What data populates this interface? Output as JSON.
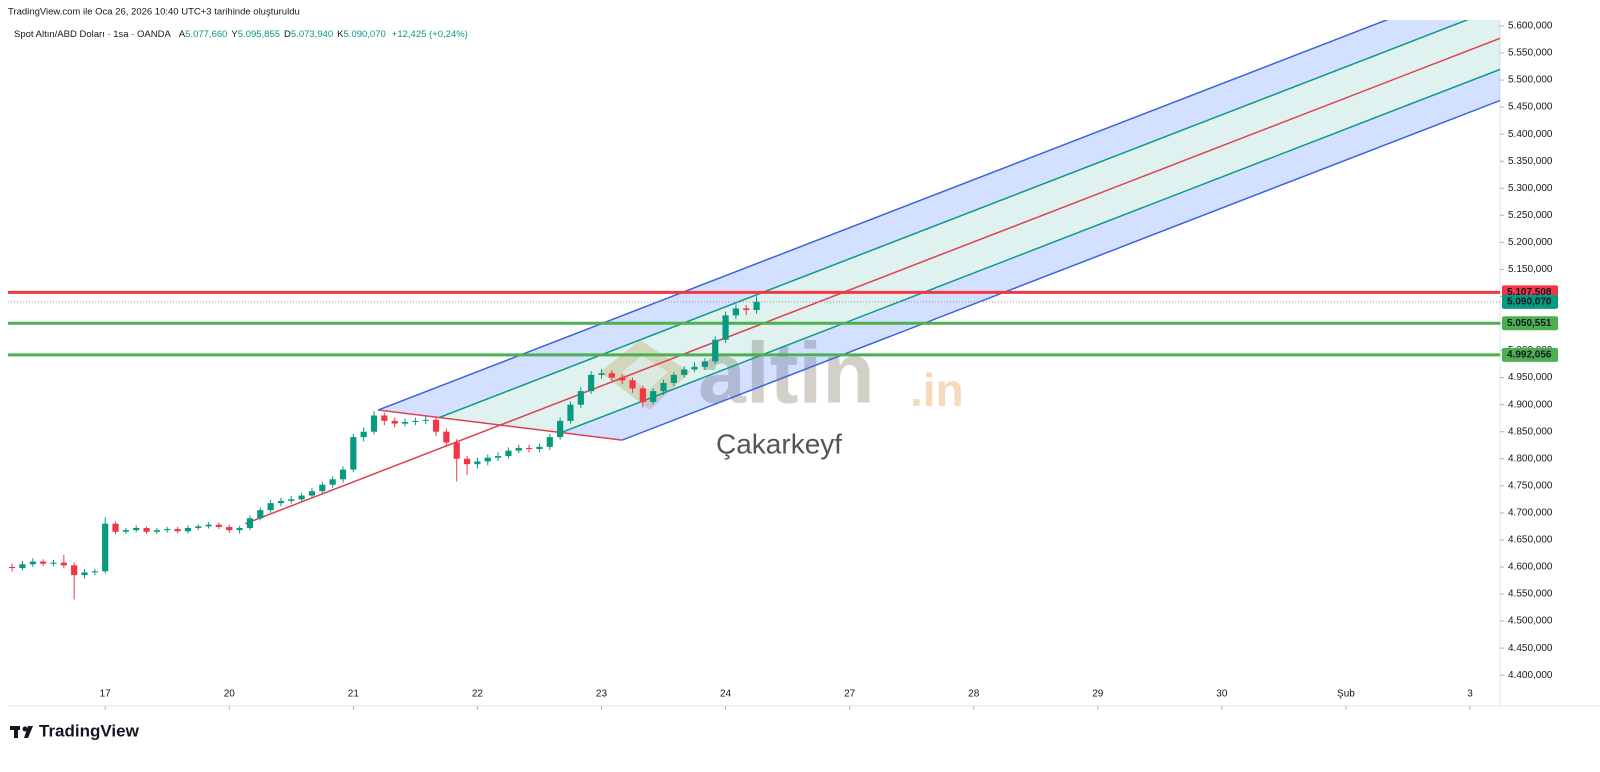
{
  "header": {
    "title": "TradingView.com ile Oca 26, 2026 10:40 UTC+3 tarihinde oluşturuldu"
  },
  "chart_data": {
    "type": "candlestick",
    "legend": {
      "symbol": "Spot Altın/ABD Doları · 1sa · OANDA",
      "fields": [
        {
          "key": "A",
          "value": "5.077,660"
        },
        {
          "key": "Y",
          "value": "5.095,855"
        },
        {
          "key": "D",
          "value": "5.073,940"
        },
        {
          "key": "K",
          "value": "5.090,070"
        }
      ],
      "change": "+12,425 (+0,24%)"
    },
    "x": [
      6,
      8,
      10,
      12,
      14,
      16,
      18,
      20,
      22,
      24,
      26,
      28,
      30,
      32,
      34,
      36,
      38,
      40,
      42,
      44,
      46,
      48,
      50,
      52,
      54,
      56,
      58,
      60,
      62,
      64,
      66,
      68,
      70,
      72,
      74,
      76,
      78,
      80,
      82,
      84,
      86,
      88,
      90,
      92,
      94,
      96,
      98,
      100,
      102,
      104,
      106,
      108,
      110,
      112,
      114,
      116,
      118,
      120,
      122,
      124,
      126,
      128,
      130,
      132,
      134,
      136,
      138,
      140,
      142,
      144,
      146,
      148,
      150
    ],
    "open": [
      4600,
      4598,
      4605,
      4610,
      4606,
      4608,
      4603,
      4585,
      4590,
      4592,
      4680,
      4665,
      4668,
      4672,
      4665,
      4668,
      4670,
      4666,
      4672,
      4675,
      4678,
      4674,
      4668,
      4672,
      4690,
      4705,
      4718,
      4722,
      4725,
      4732,
      4740,
      4752,
      4762,
      4780,
      4840,
      4850,
      4880,
      4870,
      4865,
      4868,
      4870,
      4872,
      4850,
      4830,
      4800,
      4790,
      4795,
      4802,
      4805,
      4815,
      4820,
      4818,
      4822,
      4840,
      4870,
      4900,
      4925,
      4955,
      4958,
      4950,
      4945,
      4930,
      4905,
      4925,
      4940,
      4955,
      4965,
      4970,
      4980,
      5020,
      5065,
      5078,
      5075
    ],
    "high": [
      4606,
      4611,
      4616,
      4614,
      4613,
      4622,
      4608,
      4596,
      4597,
      4692,
      4684,
      4672,
      4677,
      4675,
      4672,
      4674,
      4674,
      4677,
      4679,
      4683,
      4682,
      4678,
      4676,
      4695,
      4710,
      4724,
      4728,
      4731,
      4737,
      4746,
      4757,
      4768,
      4786,
      4846,
      4858,
      4888,
      4885,
      4876,
      4874,
      4876,
      4880,
      4878,
      4856,
      4836,
      4805,
      4802,
      4808,
      4812,
      4821,
      4826,
      4826,
      4828,
      4846,
      4876,
      4906,
      4932,
      4962,
      4966,
      4964,
      4956,
      4950,
      4935,
      4930,
      4946,
      4960,
      4971,
      4978,
      4986,
      5026,
      5072,
      5085,
      5084,
      5100
    ],
    "low": [
      4592,
      4594,
      4600,
      4602,
      4601,
      4598,
      4540,
      4578,
      4585,
      4588,
      4660,
      4661,
      4664,
      4661,
      4661,
      4664,
      4662,
      4662,
      4668,
      4671,
      4670,
      4663,
      4662,
      4668,
      4686,
      4700,
      4712,
      4717,
      4720,
      4727,
      4735,
      4746,
      4756,
      4775,
      4832,
      4845,
      4862,
      4858,
      4860,
      4862,
      4864,
      4842,
      4822,
      4758,
      4770,
      4782,
      4788,
      4796,
      4800,
      4810,
      4812,
      4812,
      4816,
      4835,
      4865,
      4894,
      4920,
      4948,
      4944,
      4938,
      4922,
      4895,
      4900,
      4918,
      4934,
      4950,
      4960,
      4964,
      4975,
      5014,
      5058,
      5066,
      5068
    ],
    "close": [
      4598,
      4605,
      4610,
      4606,
      4608,
      4603,
      4585,
      4590,
      4592,
      4680,
      4665,
      4668,
      4672,
      4665,
      4668,
      4670,
      4666,
      4672,
      4675,
      4678,
      4674,
      4668,
      4672,
      4690,
      4705,
      4718,
      4722,
      4725,
      4732,
      4740,
      4752,
      4762,
      4780,
      4840,
      4850,
      4880,
      4870,
      4865,
      4868,
      4870,
      4872,
      4850,
      4830,
      4800,
      4790,
      4795,
      4802,
      4805,
      4815,
      4820,
      4818,
      4822,
      4840,
      4870,
      4900,
      4925,
      4955,
      4958,
      4950,
      4945,
      4930,
      4905,
      4925,
      4940,
      4955,
      4965,
      4970,
      4980,
      5020,
      5065,
      5078,
      5075,
      5090
    ],
    "up_color": "#089981",
    "down_color": "#f23645",
    "last_price_label": "5.090,070",
    "xlim": [
      5.2,
      293.8
    ],
    "xticks": [
      {
        "value": 24,
        "label": "17"
      },
      {
        "value": 48,
        "label": "20"
      },
      {
        "value": 72,
        "label": "21"
      },
      {
        "value": 96,
        "label": "22"
      },
      {
        "value": 120,
        "label": "23"
      },
      {
        "value": 144,
        "label": "24"
      },
      {
        "value": 168,
        "label": "27"
      },
      {
        "value": 192,
        "label": "28"
      },
      {
        "value": 216,
        "label": "29"
      },
      {
        "value": 240,
        "label": "30"
      },
      {
        "value": 264,
        "label": "Şub"
      },
      {
        "value": 288,
        "label": "3"
      }
    ],
    "ylim": [
      4343,
      5611
    ],
    "yticks": [
      {
        "value": 5600,
        "label": "5.600,000"
      },
      {
        "value": 5550,
        "label": "5.550,000"
      },
      {
        "value": 5500,
        "label": "5.500,000"
      },
      {
        "value": 5450,
        "label": "5.450,000"
      },
      {
        "value": 5400,
        "label": "5.400,000"
      },
      {
        "value": 5350,
        "label": "5.350,000"
      },
      {
        "value": 5300,
        "label": "5.300,000"
      },
      {
        "value": 5250,
        "label": "5.250,000"
      },
      {
        "value": 5200,
        "label": "5.200,000"
      },
      {
        "value": 5150,
        "label": "5.150,000"
      },
      {
        "value": 5100,
        "label": "5.100,000"
      },
      {
        "value": 5050,
        "label": "5.050,000"
      },
      {
        "value": 5000,
        "label": "5.000,000"
      },
      {
        "value": 4950,
        "label": "4.950,000"
      },
      {
        "value": 4900,
        "label": "4.900,000"
      },
      {
        "value": 4850,
        "label": "4.850,000"
      },
      {
        "value": 4800,
        "label": "4.800,000"
      },
      {
        "value": 4750,
        "label": "4.750,000"
      },
      {
        "value": 4700,
        "label": "4.700,000"
      },
      {
        "value": 4650,
        "label": "4.650,000"
      },
      {
        "value": 4600,
        "label": "4.600,000"
      },
      {
        "value": 4550,
        "label": "4.550,000"
      },
      {
        "value": 4500,
        "label": "4.500,000"
      },
      {
        "value": 4450,
        "label": "4.450,000"
      },
      {
        "value": 4400,
        "label": "4.400,000"
      }
    ],
    "levels": [
      {
        "value": 5107.508,
        "label": "5.107,508",
        "color": "#f23645"
      },
      {
        "value": 5050.551,
        "label": "5.050,551",
        "color": "#4caf50"
      },
      {
        "value": 4992.056,
        "label": "4.992,056",
        "color": "#4caf50"
      }
    ],
    "pitchfork": {
      "points": [
        {
          "x": 51.1,
          "y": 4680
        },
        {
          "x": 76.8,
          "y": 4890
        },
        {
          "x": 124.0,
          "y": 4834.5
        }
      ],
      "median_color": "#e0404f",
      "outer_color": "#3d63dd",
      "inner_color": "#0c9985",
      "outer_fill": "rgba(41,98,255,0.2)",
      "inner_fill": "rgba(8,153,129,0.13)"
    },
    "watermark": {
      "brand": "altin",
      "suffix": ".in",
      "caption": "Çakarkeyf"
    }
  },
  "footer": {
    "logo": "TradingView"
  }
}
